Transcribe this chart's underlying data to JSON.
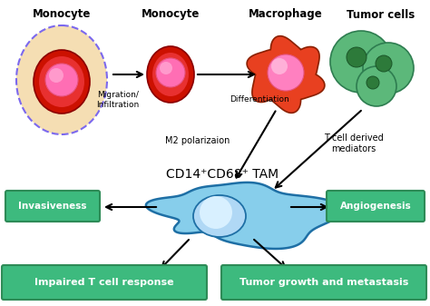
{
  "bg_color": "#ffffff",
  "green_box_color": "#3dba7e",
  "green_box_edge": "#2e8b57",
  "green_text_color": "#ffffff",
  "arrow_color": "#1a1a1a",
  "labels": {
    "monocyte1": "Monocyte",
    "monocyte2": "Monocyte",
    "macrophage": "Macrophage",
    "tumor_cells": "Tumor cells",
    "migration": "Migration/\nInfiltration",
    "differentiation": "Differentiation",
    "m2": "M2 polarizaion",
    "tcell": "T cell derived\nmediators",
    "cd14_tam": "CD14⁺CD68⁺ TAM",
    "invasiveness": "Invasiveness",
    "angiogenesis": "Angiogenesis",
    "impaired": "Impaired T cell response",
    "tumor_growth": "Tumor growth and metastasis"
  }
}
